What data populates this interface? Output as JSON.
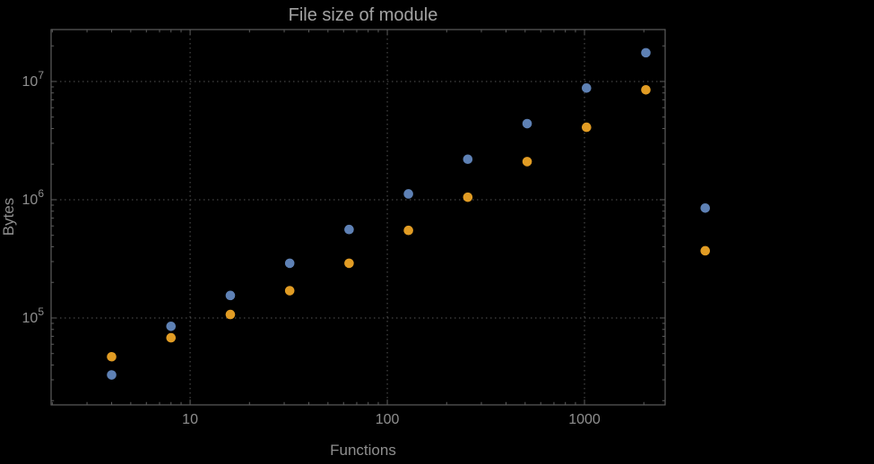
{
  "chart_data": {
    "type": "scatter",
    "title": "File size of module",
    "xlabel": "Functions",
    "ylabel": "Bytes",
    "x_scale": "log10",
    "y_scale": "log10",
    "grid": "dotted lines at decade ticks",
    "legend": "none",
    "x_log_range": [
      0.295,
      3.409
    ],
    "y_log_range": [
      4.265,
      7.439
    ],
    "x": [
      4,
      8,
      16,
      32,
      64,
      128,
      256,
      512,
      1024,
      2048,
      4096
    ],
    "series": [
      {
        "name": "series-1-blue",
        "color": "#5e81b5",
        "values": [
          33000,
          85000,
          155000,
          290000,
          560000,
          1120000,
          2200000,
          4400000,
          8800000,
          17500000,
          850000
        ]
      },
      {
        "name": "series-2-orange",
        "color": "#e19c24",
        "values": [
          47000,
          68000,
          107000,
          170000,
          290000,
          550000,
          1050000,
          2100000,
          4100000,
          8500000,
          370000
        ]
      }
    ],
    "x_ticks_major": [
      {
        "v": 10,
        "label": "10"
      },
      {
        "v": 100,
        "label": "100"
      },
      {
        "v": 1000,
        "label": "1000"
      }
    ],
    "x_ticks_minor": [
      2,
      3,
      4,
      5,
      6,
      7,
      8,
      9,
      20,
      30,
      40,
      50,
      60,
      70,
      80,
      90,
      200,
      300,
      400,
      500,
      600,
      700,
      800,
      900,
      2000
    ],
    "y_ticks_major": [
      {
        "v": 100000,
        "mantissa": "10",
        "exponent": "5"
      },
      {
        "v": 1000000,
        "mantissa": "10",
        "exponent": "6"
      },
      {
        "v": 10000000,
        "mantissa": "10",
        "exponent": "7"
      }
    ],
    "y_ticks_minor": [
      20000,
      30000,
      40000,
      50000,
      60000,
      70000,
      80000,
      90000,
      200000,
      300000,
      400000,
      500000,
      600000,
      700000,
      800000,
      900000,
      2000000,
      3000000,
      4000000,
      5000000,
      6000000,
      7000000,
      8000000,
      9000000,
      20000000
    ],
    "point_radius": 5.3,
    "colors": {
      "background": "#000000",
      "frame": "#5c5c5c",
      "grid": "#555555",
      "tick_label": "#8f8f8f",
      "axis_label": "#8f8f8f",
      "title": "#a3a3a3"
    }
  }
}
